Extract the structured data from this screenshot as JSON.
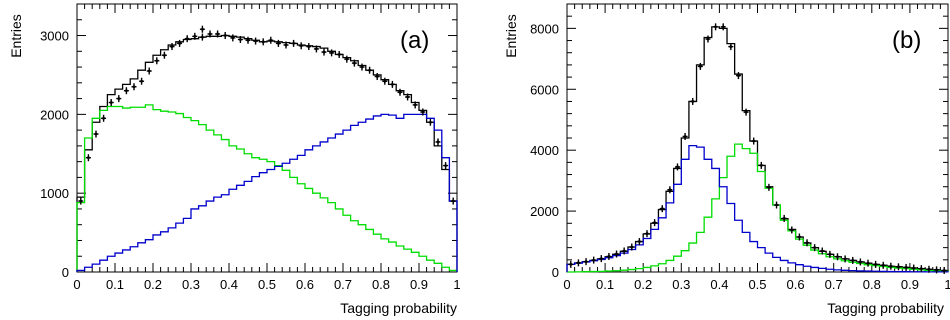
{
  "chart_data": [
    {
      "type": "histogram",
      "panel_label": "(a)",
      "xlabel": "Tagging probability",
      "ylabel": "Entries",
      "xlim": [
        0,
        1
      ],
      "ylim": [
        0,
        3400
      ],
      "x_ticks": [
        0,
        0.1,
        0.2,
        0.3,
        0.4,
        0.5,
        0.6,
        0.7,
        0.8,
        0.9,
        1
      ],
      "x_tick_labels": [
        "0",
        "0.1",
        "0.2",
        "0.3",
        "0.4",
        "0.5",
        "0.6",
        "0.7",
        "0.8",
        "0.9",
        "1"
      ],
      "y_ticks": [
        0,
        1000,
        2000,
        3000
      ],
      "y_tick_labels": [
        "0",
        "1000",
        "2000",
        "3000"
      ],
      "bins": {
        "start": 0,
        "width": 0.02,
        "count": 50
      },
      "series": [
        {
          "kind": "step",
          "color": "#000000",
          "values": [
            950,
            1550,
            1900,
            2100,
            2250,
            2320,
            2380,
            2450,
            2560,
            2660,
            2750,
            2820,
            2880,
            2920,
            2950,
            2960,
            2980,
            2990,
            2990,
            3000,
            2990,
            2980,
            2960,
            2940,
            2920,
            2930,
            2920,
            2910,
            2900,
            2880,
            2870,
            2860,
            2840,
            2800,
            2760,
            2720,
            2680,
            2620,
            2560,
            2500,
            2440,
            2380,
            2300,
            2250,
            2150,
            2050,
            1900,
            1600,
            1300,
            900
          ]
        },
        {
          "kind": "step",
          "color": "#00dd00",
          "values": [
            880,
            1700,
            1950,
            2050,
            2100,
            2100,
            2080,
            2090,
            2090,
            2120,
            2060,
            2040,
            2030,
            2010,
            1960,
            1920,
            1870,
            1800,
            1740,
            1680,
            1600,
            1560,
            1500,
            1450,
            1430,
            1400,
            1350,
            1290,
            1200,
            1120,
            1060,
            1000,
            940,
            880,
            800,
            720,
            650,
            600,
            540,
            480,
            420,
            380,
            330,
            290,
            250,
            200,
            150,
            110,
            60,
            20
          ]
        },
        {
          "kind": "step",
          "color": "#0000cc",
          "values": [
            20,
            60,
            100,
            150,
            200,
            240,
            280,
            320,
            370,
            410,
            470,
            510,
            560,
            620,
            680,
            800,
            840,
            900,
            950,
            980,
            1050,
            1100,
            1150,
            1210,
            1260,
            1300,
            1340,
            1380,
            1430,
            1480,
            1550,
            1600,
            1650,
            1700,
            1750,
            1800,
            1860,
            1900,
            1940,
            1980,
            2000,
            1990,
            1950,
            2000,
            2000,
            2000,
            1950,
            1800,
            1450,
            900
          ]
        },
        {
          "kind": "points",
          "color": "#000000",
          "values": [
            900,
            1450,
            1750,
            1950,
            2150,
            2200,
            2300,
            2350,
            2420,
            2550,
            2680,
            2750,
            2860,
            2900,
            2960,
            2990,
            2980,
            3020,
            3020,
            3000,
            2970,
            2950,
            2940,
            2930,
            2920,
            2940,
            2900,
            2880,
            2900,
            2870,
            2860,
            2830,
            2790,
            2780,
            2760,
            2700,
            2650,
            2600,
            2560,
            2480,
            2420,
            2380,
            2280,
            2220,
            2120,
            2030,
            1900,
            1650,
            1350,
            900
          ],
          "outliers": [
            {
              "x": 0.33,
              "y": 3080
            }
          ]
        }
      ]
    },
    {
      "type": "histogram",
      "panel_label": "(b)",
      "xlabel": "Tagging probability",
      "ylabel": "Entries",
      "xlim": [
        0,
        1
      ],
      "ylim": [
        0,
        8800
      ],
      "x_ticks": [
        0,
        0.1,
        0.2,
        0.3,
        0.4,
        0.5,
        0.6,
        0.7,
        0.8,
        0.9,
        1
      ],
      "x_tick_labels": [
        "0",
        "0.1",
        "0.2",
        "0.3",
        "0.4",
        "0.5",
        "0.6",
        "0.7",
        "0.8",
        "0.9",
        "1"
      ],
      "y_ticks": [
        0,
        2000,
        4000,
        6000,
        8000
      ],
      "y_tick_labels": [
        "0",
        "2000",
        "4000",
        "6000",
        "8000"
      ],
      "bins": {
        "start": 0,
        "width": 0.02,
        "count": 50
      },
      "series": [
        {
          "kind": "step",
          "color": "#000000",
          "values": [
            250,
            300,
            340,
            380,
            430,
            500,
            580,
            680,
            820,
            1000,
            1250,
            1600,
            2050,
            2650,
            3400,
            4400,
            5600,
            6800,
            7700,
            8050,
            8000,
            7500,
            6500,
            5300,
            4300,
            3500,
            2800,
            2200,
            1750,
            1400,
            1150,
            950,
            800,
            680,
            580,
            500,
            430,
            380,
            330,
            290,
            250,
            220,
            190,
            170,
            150,
            130,
            110,
            90,
            70,
            50
          ]
        },
        {
          "kind": "step",
          "color": "#00dd00",
          "values": [
            0,
            5,
            10,
            15,
            20,
            30,
            40,
            60,
            80,
            110,
            150,
            200,
            270,
            380,
            520,
            700,
            950,
            1300,
            1800,
            2400,
            3100,
            3800,
            4200,
            4050,
            3900,
            3300,
            2750,
            2200,
            1700,
            1350,
            1080,
            880,
            720,
            600,
            500,
            430,
            370,
            320,
            280,
            240,
            210,
            180,
            150,
            130,
            110,
            90,
            70,
            50,
            30,
            20
          ]
        },
        {
          "kind": "step",
          "color": "#0000cc",
          "values": [
            250,
            290,
            330,
            370,
            410,
            470,
            540,
            620,
            740,
            890,
            1100,
            1400,
            1780,
            2270,
            2880,
            3700,
            4150,
            4100,
            3700,
            3400,
            2800,
            2250,
            1700,
            1300,
            1000,
            800,
            620,
            480,
            380,
            300,
            240,
            190,
            150,
            120,
            90,
            70,
            55,
            45,
            35,
            30,
            25,
            20,
            15,
            12,
            10,
            8,
            6,
            5,
            4,
            3
          ]
        },
        {
          "kind": "points",
          "color": "#000000",
          "values": [
            250,
            300,
            340,
            390,
            440,
            510,
            590,
            690,
            820,
            1000,
            1260,
            1620,
            2080,
            2700,
            3450,
            4450,
            5600,
            6750,
            7650,
            8050,
            8050,
            7400,
            6450,
            5250,
            4300,
            3500,
            2780,
            2200,
            1760,
            1380,
            1150,
            960,
            800,
            690,
            580,
            500,
            430,
            380,
            330,
            290,
            250,
            220,
            190,
            170,
            150,
            130,
            110,
            90,
            70,
            50
          ],
          "outliers": []
        }
      ]
    }
  ]
}
